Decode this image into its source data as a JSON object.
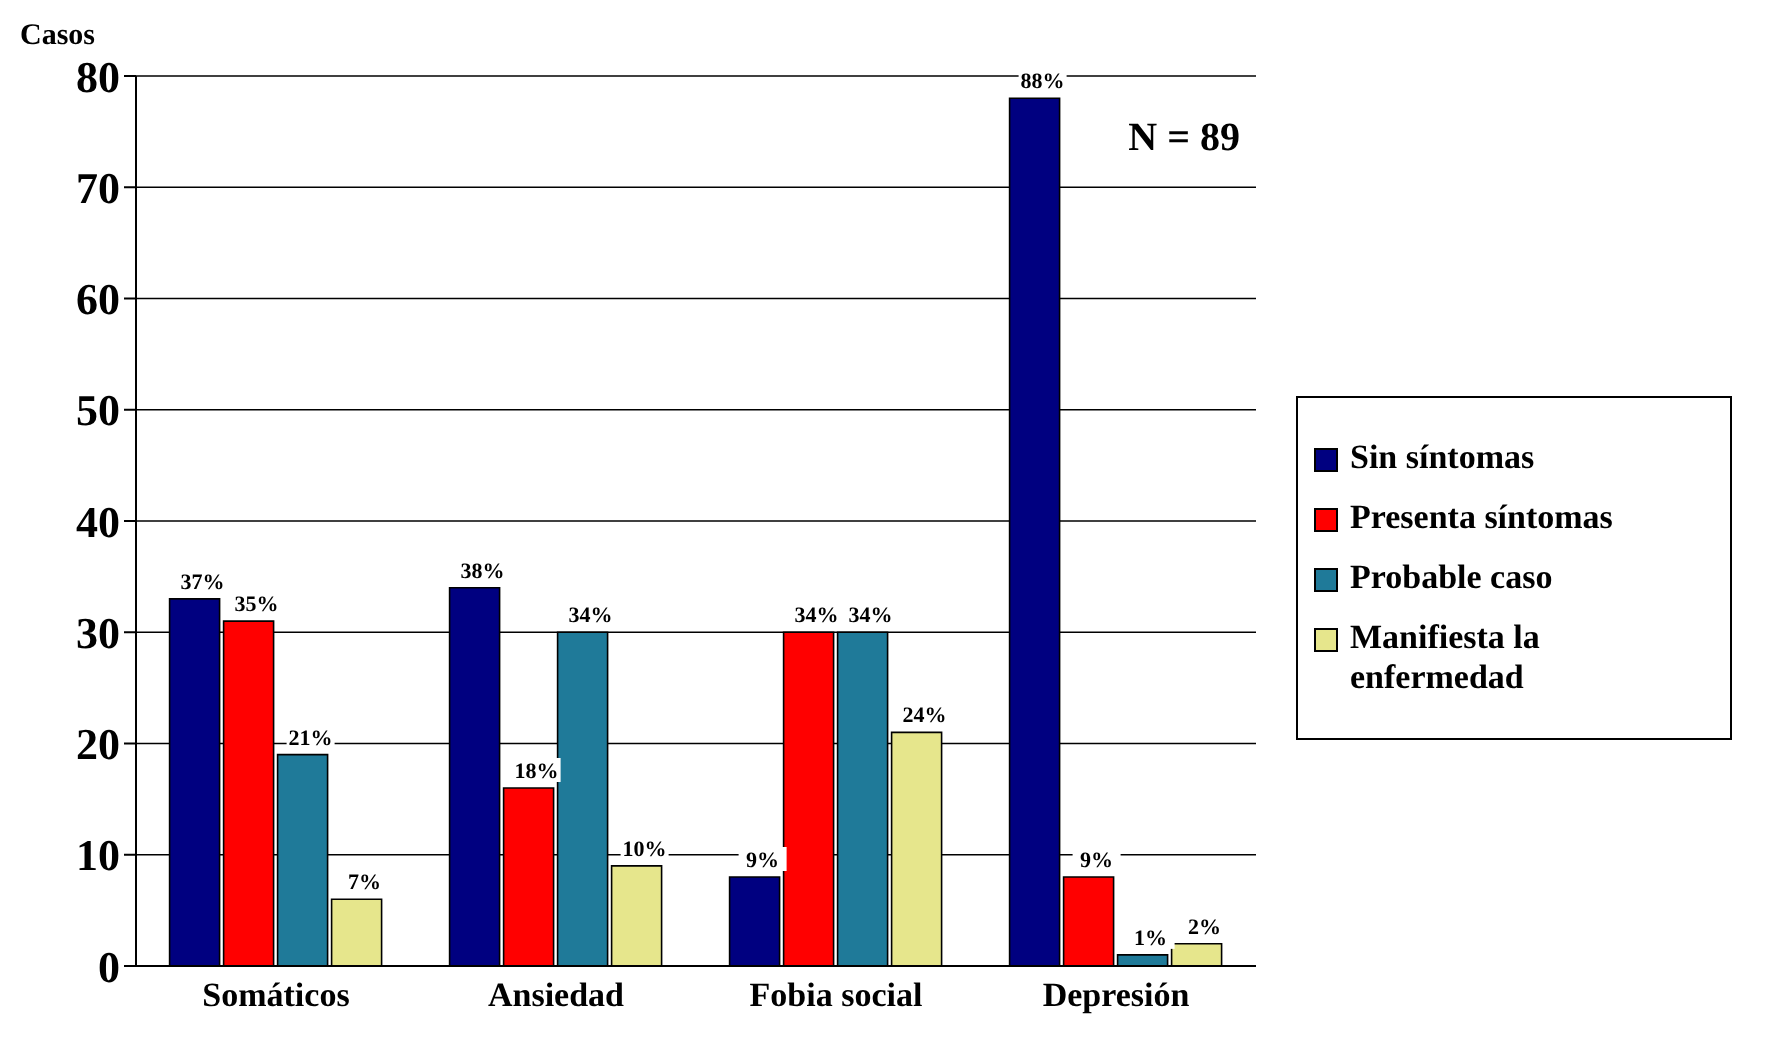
{
  "chart_data": {
    "type": "bar",
    "ylabel": "Casos",
    "categories": [
      "Somáticos",
      "Ansiedad",
      "Fobia social",
      "Depresión"
    ],
    "series": [
      {
        "name": "Sin síntomas",
        "color": "#000080",
        "values": [
          33,
          34,
          8,
          78
        ]
      },
      {
        "name": "Presenta síntomas",
        "color": "#ff0000",
        "values": [
          31,
          16,
          30,
          8
        ]
      },
      {
        "name": "Probable caso",
        "color": "#1f7a99",
        "values": [
          19,
          30,
          30,
          1
        ]
      },
      {
        "name": "Manifiesta la enfermedad",
        "color": "#e6e68c",
        "values": [
          6,
          9,
          21,
          2
        ]
      }
    ],
    "ylim": [
      0,
      80
    ],
    "yticks": [
      0,
      10,
      20,
      30,
      40,
      50,
      60,
      70,
      80
    ],
    "grid": "y",
    "legend": "right",
    "annotations": [
      "N = 89",
      "37%",
      "35%",
      "21%",
      "7%",
      "38%",
      "18%",
      "34%",
      "10%",
      "9%",
      "34%",
      "34%",
      "24%",
      "88%",
      "9%",
      "1%",
      "2%"
    ]
  }
}
